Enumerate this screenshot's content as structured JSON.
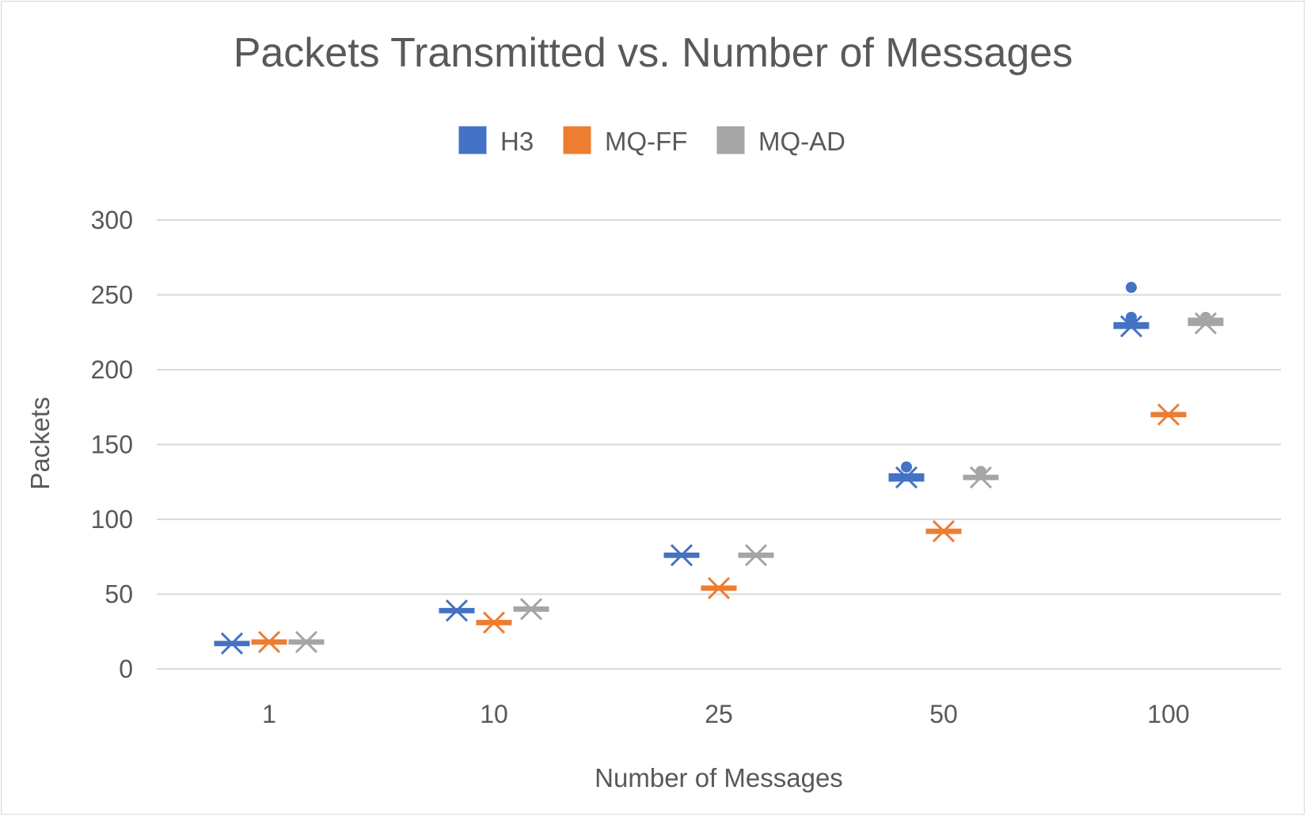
{
  "chart_data": {
    "type": "box",
    "title": "Packets Transmitted vs. Number of Messages",
    "xlabel": "Number of Messages",
    "ylabel": "Packets",
    "categories": [
      "1",
      "10",
      "25",
      "50",
      "100"
    ],
    "ylim": [
      0,
      300
    ],
    "yticks": [
      0,
      50,
      100,
      150,
      200,
      250,
      300
    ],
    "grid": true,
    "legend_position": "top",
    "series": [
      {
        "name": "H3",
        "color": "#4472c4",
        "values": [
          {
            "median": 17,
            "mean": 17,
            "q1": 16,
            "q3": 18,
            "outliers": []
          },
          {
            "median": 39,
            "mean": 39,
            "q1": 38,
            "q3": 40,
            "outliers": []
          },
          {
            "median": 76,
            "mean": 76,
            "q1": 75,
            "q3": 77,
            "outliers": []
          },
          {
            "median": 128,
            "mean": 128,
            "q1": 126,
            "q3": 130,
            "outliers": [
              135
            ]
          },
          {
            "median": 230,
            "mean": 229,
            "q1": 228,
            "q3": 231,
            "outliers": [
              235,
              255
            ]
          }
        ]
      },
      {
        "name": "MQ-FF",
        "color": "#ed7d31",
        "values": [
          {
            "median": 18,
            "mean": 18,
            "q1": 17,
            "q3": 19,
            "outliers": []
          },
          {
            "median": 31,
            "mean": 31,
            "q1": 30,
            "q3": 32,
            "outliers": []
          },
          {
            "median": 54,
            "mean": 54,
            "q1": 53,
            "q3": 55,
            "outliers": []
          },
          {
            "median": 92,
            "mean": 92,
            "q1": 91,
            "q3": 93,
            "outliers": []
          },
          {
            "median": 170,
            "mean": 170,
            "q1": 169,
            "q3": 171,
            "outliers": []
          }
        ]
      },
      {
        "name": "MQ-AD",
        "color": "#a5a5a5",
        "values": [
          {
            "median": 18,
            "mean": 18,
            "q1": 17,
            "q3": 19,
            "outliers": []
          },
          {
            "median": 40,
            "mean": 40,
            "q1": 39,
            "q3": 41,
            "outliers": []
          },
          {
            "median": 76,
            "mean": 76,
            "q1": 75,
            "q3": 77,
            "outliers": []
          },
          {
            "median": 128,
            "mean": 128,
            "q1": 127,
            "q3": 129,
            "outliers": [
              132
            ]
          },
          {
            "median": 232,
            "mean": 231,
            "q1": 230,
            "q3": 234,
            "outliers": [
              235
            ]
          }
        ]
      }
    ]
  }
}
